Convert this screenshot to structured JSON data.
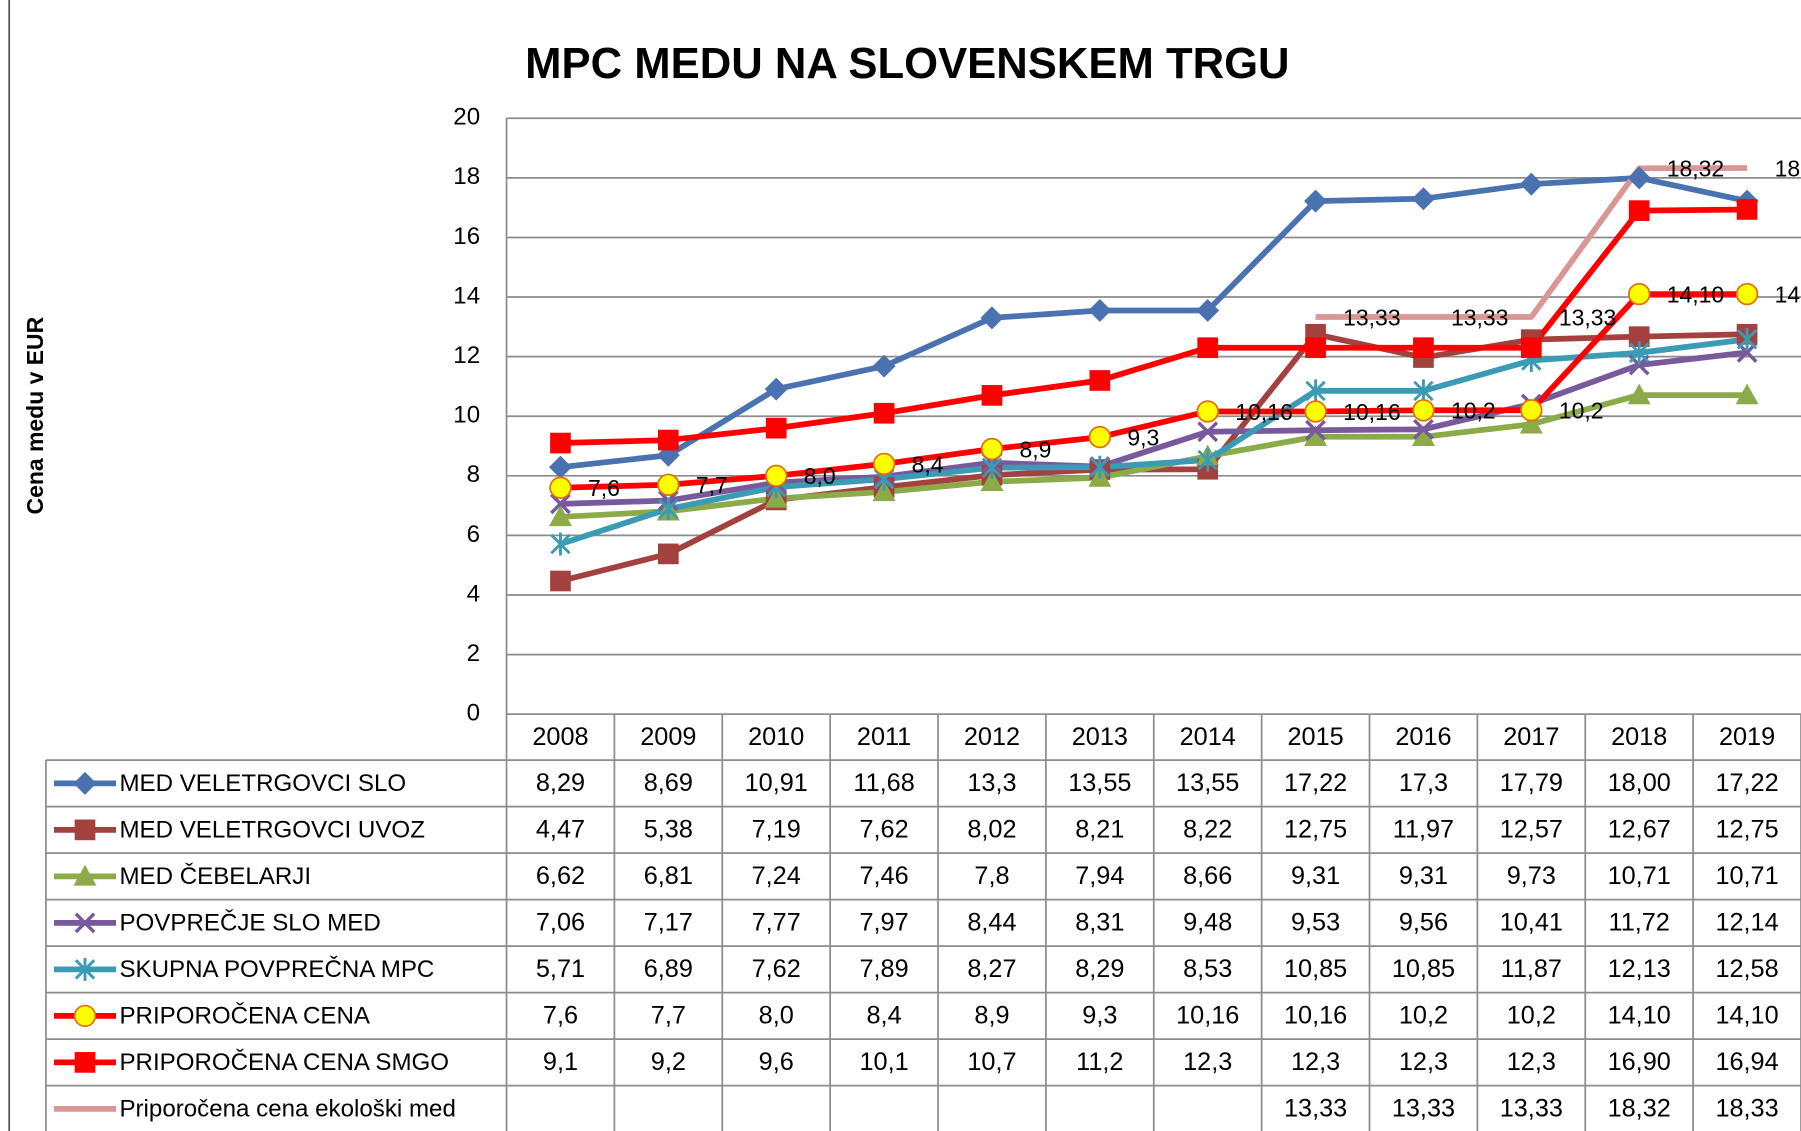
{
  "chart_data": {
    "type": "line",
    "title": "MPC MEDU NA SLOVENSKEM TRGU",
    "y_label": "Cena medu v EUR",
    "categories": [
      "2008",
      "2009",
      "2010",
      "2011",
      "2012",
      "2013",
      "2014",
      "2015",
      "2016",
      "2017",
      "2018",
      "2019"
    ],
    "ylim": [
      0,
      20
    ],
    "yticks": [
      0,
      2,
      4,
      6,
      8,
      10,
      12,
      14,
      16,
      18,
      20
    ],
    "grid": true,
    "data_table": true,
    "series": [
      {
        "name": "MED VELETRGOVCI SLO",
        "color": "#4a72b0",
        "marker": "diamond",
        "values": [
          8.29,
          8.69,
          10.91,
          11.68,
          13.3,
          13.55,
          13.55,
          17.22,
          17.3,
          17.79,
          18.0,
          17.22
        ],
        "value_labels": [
          "8,29",
          "8,69",
          "10,91",
          "11,68",
          "13,3",
          "13,55",
          "13,55",
          "17,22",
          "17,3",
          "17,79",
          "18,00",
          "17,22"
        ]
      },
      {
        "name": "MED VELETRGOVCI UVOZ",
        "color": "#a3413f",
        "marker": "square",
        "values": [
          4.47,
          5.38,
          7.19,
          7.62,
          8.02,
          8.21,
          8.22,
          12.75,
          11.97,
          12.57,
          12.67,
          12.75
        ],
        "value_labels": [
          "4,47",
          "5,38",
          "7,19",
          "7,62",
          "8,02",
          "8,21",
          "8,22",
          "12,75",
          "11,97",
          "12,57",
          "12,67",
          "12,75"
        ]
      },
      {
        "name": "MED ČEBELARJI",
        "color": "#8aab48",
        "marker": "triangle",
        "values": [
          6.62,
          6.81,
          7.24,
          7.46,
          7.8,
          7.94,
          8.66,
          9.31,
          9.31,
          9.73,
          10.71,
          10.71
        ],
        "value_labels": [
          "6,62",
          "6,81",
          "7,24",
          "7,46",
          "7,8",
          "7,94",
          "8,66",
          "9,31",
          "9,31",
          "9,73",
          "10,71",
          "10,71"
        ]
      },
      {
        "name": "POVPREČJE SLO MED",
        "color": "#77599c",
        "marker": "x",
        "values": [
          7.06,
          7.17,
          7.77,
          7.97,
          8.44,
          8.31,
          9.48,
          9.53,
          9.56,
          10.41,
          11.72,
          12.14
        ],
        "value_labels": [
          "7,06",
          "7,17",
          "7,77",
          "7,97",
          "8,44",
          "8,31",
          "9,48",
          "9,53",
          "9,56",
          "10,41",
          "11,72",
          "12,14"
        ]
      },
      {
        "name": "SKUPNA POVPREČNA MPC",
        "color": "#3b9bb4",
        "marker": "star",
        "values": [
          5.71,
          6.89,
          7.62,
          7.89,
          8.27,
          8.29,
          8.53,
          10.85,
          10.85,
          11.87,
          12.13,
          12.58
        ],
        "value_labels": [
          "5,71",
          "6,89",
          "7,62",
          "7,89",
          "8,27",
          "8,29",
          "8,53",
          "10,85",
          "10,85",
          "11,87",
          "12,13",
          "12,58"
        ]
      },
      {
        "name": "PRIPOROČENA CENA",
        "color": "#ff0000",
        "marker": "circle",
        "marker_fill": "#ffff00",
        "data_labels": true,
        "values": [
          7.6,
          7.7,
          8.0,
          8.4,
          8.9,
          9.3,
          10.16,
          10.16,
          10.2,
          10.2,
          14.1,
          14.1
        ],
        "value_labels": [
          "7,6",
          "7,7",
          "8,0",
          "8,4",
          "8,9",
          "9,3",
          "10,16",
          "10,16",
          "10,2",
          "10,2",
          "14,10",
          "14,10"
        ]
      },
      {
        "name": "PRIPOROČENA CENA SMGO",
        "color": "#ff0000",
        "marker": "square",
        "values": [
          9.1,
          9.2,
          9.6,
          10.1,
          10.7,
          11.2,
          12.3,
          12.3,
          12.3,
          12.3,
          16.9,
          16.94
        ],
        "value_labels": [
          "9,1",
          "9,2",
          "9,6",
          "10,1",
          "10,7",
          "11,2",
          "12,3",
          "12,3",
          "12,3",
          "12,3",
          "16,90",
          "16,94"
        ]
      },
      {
        "name": "Priporočena cena ekološki med",
        "color": "#d99694",
        "marker": "none",
        "data_labels": true,
        "values": [
          null,
          null,
          null,
          null,
          null,
          null,
          null,
          13.33,
          13.33,
          13.33,
          18.32,
          18.33
        ],
        "value_labels": [
          null,
          null,
          null,
          null,
          null,
          null,
          null,
          "13,33",
          "13,33",
          "13,33",
          "18,32",
          "18,33"
        ]
      }
    ]
  }
}
